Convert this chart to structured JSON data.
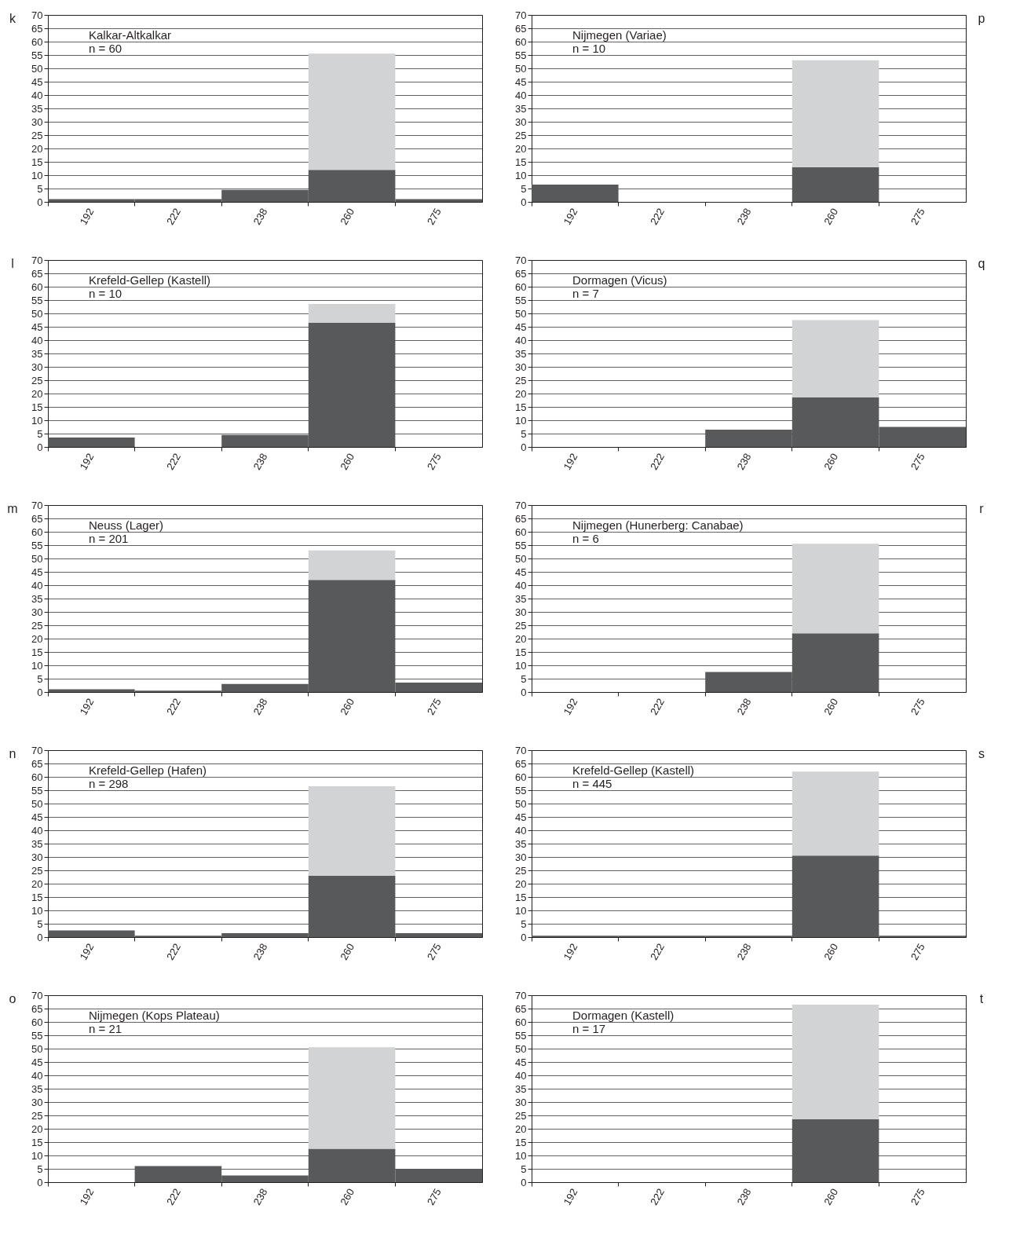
{
  "chart_data": [
    {
      "type": "bar",
      "title": "Kalkar-Altkalkar",
      "subtitle": "n = 60",
      "annotations": [
        "k"
      ],
      "categories": [
        "192",
        "222",
        "238",
        "260",
        "275"
      ],
      "stacked": true,
      "ylim": [
        0,
        70
      ],
      "yticks": [
        0,
        5,
        10,
        15,
        20,
        25,
        30,
        35,
        40,
        45,
        50,
        55,
        60,
        65,
        70
      ],
      "grid": "y",
      "series": [
        {
          "color": "#58595b",
          "values": [
            1,
            1,
            4.5,
            12,
            1
          ]
        },
        {
          "color": "#d1d3d4",
          "values": [
            0,
            0,
            0,
            43.5,
            0
          ]
        }
      ]
    },
    {
      "type": "bar",
      "title": "Nijmegen (Variae)",
      "subtitle": "n = 10",
      "annotations": [
        "p"
      ],
      "categories": [
        "192",
        "222",
        "238",
        "260",
        "275"
      ],
      "stacked": true,
      "ylim": [
        0,
        70
      ],
      "yticks": [
        0,
        5,
        10,
        15,
        20,
        25,
        30,
        35,
        40,
        45,
        50,
        55,
        60,
        65,
        70
      ],
      "grid": "y",
      "series": [
        {
          "color": "#58595b",
          "values": [
            6.5,
            0,
            0,
            13,
            0
          ]
        },
        {
          "color": "#d1d3d4",
          "values": [
            0,
            0,
            0,
            40,
            0
          ]
        }
      ]
    },
    {
      "type": "bar",
      "title": "Krefeld-Gellep (Kastell)",
      "subtitle": "n = 10",
      "annotations": [
        "l"
      ],
      "categories": [
        "192",
        "222",
        "238",
        "260",
        "275"
      ],
      "stacked": true,
      "ylim": [
        0,
        70
      ],
      "yticks": [
        0,
        5,
        10,
        15,
        20,
        25,
        30,
        35,
        40,
        45,
        50,
        55,
        60,
        65,
        70
      ],
      "grid": "y",
      "series": [
        {
          "color": "#58595b",
          "values": [
            3.5,
            0,
            4.5,
            46.5,
            0
          ]
        },
        {
          "color": "#d1d3d4",
          "values": [
            0,
            0,
            0,
            7,
            0
          ]
        }
      ]
    },
    {
      "type": "bar",
      "title": "Dormagen (Vicus)",
      "subtitle": "n = 7",
      "annotations": [
        "q"
      ],
      "categories": [
        "192",
        "222",
        "238",
        "260",
        "275"
      ],
      "stacked": true,
      "ylim": [
        0,
        70
      ],
      "yticks": [
        0,
        5,
        10,
        15,
        20,
        25,
        30,
        35,
        40,
        45,
        50,
        55,
        60,
        65,
        70
      ],
      "grid": "y",
      "series": [
        {
          "color": "#58595b",
          "values": [
            0,
            0,
            6.5,
            18.5,
            7.5
          ]
        },
        {
          "color": "#d1d3d4",
          "values": [
            0,
            0,
            0,
            29,
            0
          ]
        }
      ]
    },
    {
      "type": "bar",
      "title": "Neuss (Lager)",
      "subtitle": "n = 201",
      "annotations": [
        "m"
      ],
      "categories": [
        "192",
        "222",
        "238",
        "260",
        "275"
      ],
      "stacked": true,
      "ylim": [
        0,
        70
      ],
      "yticks": [
        0,
        5,
        10,
        15,
        20,
        25,
        30,
        35,
        40,
        45,
        50,
        55,
        60,
        65,
        70
      ],
      "grid": "y",
      "series": [
        {
          "color": "#58595b",
          "values": [
            1,
            0.5,
            3,
            42,
            3.5
          ]
        },
        {
          "color": "#d1d3d4",
          "values": [
            0,
            0,
            0,
            11,
            0
          ]
        }
      ]
    },
    {
      "type": "bar",
      "title": "Nijmegen (Hunerberg: Canabae)",
      "subtitle": "n = 6",
      "annotations": [
        "r"
      ],
      "categories": [
        "192",
        "222",
        "238",
        "260",
        "275"
      ],
      "stacked": true,
      "ylim": [
        0,
        70
      ],
      "yticks": [
        0,
        5,
        10,
        15,
        20,
        25,
        30,
        35,
        40,
        45,
        50,
        55,
        60,
        65,
        70
      ],
      "grid": "y",
      "series": [
        {
          "color": "#58595b",
          "values": [
            0,
            0,
            7.5,
            22,
            0
          ]
        },
        {
          "color": "#d1d3d4",
          "values": [
            0,
            0,
            0,
            33.5,
            0
          ]
        }
      ]
    },
    {
      "type": "bar",
      "title": "Krefeld-Gellep (Hafen)",
      "subtitle": "n = 298",
      "annotations": [
        "n"
      ],
      "categories": [
        "192",
        "222",
        "238",
        "260",
        "275"
      ],
      "stacked": true,
      "ylim": [
        0,
        70
      ],
      "yticks": [
        0,
        5,
        10,
        15,
        20,
        25,
        30,
        35,
        40,
        45,
        50,
        55,
        60,
        65,
        70
      ],
      "grid": "y",
      "series": [
        {
          "color": "#58595b",
          "values": [
            2.5,
            0.5,
            1.5,
            23,
            1.5
          ]
        },
        {
          "color": "#d1d3d4",
          "values": [
            0,
            0,
            0,
            33.5,
            0
          ]
        }
      ]
    },
    {
      "type": "bar",
      "title": "Krefeld-Gellep (Kastell)",
      "subtitle": "n = 445",
      "annotations": [
        "s"
      ],
      "categories": [
        "192",
        "222",
        "238",
        "260",
        "275"
      ],
      "stacked": true,
      "ylim": [
        0,
        70
      ],
      "yticks": [
        0,
        5,
        10,
        15,
        20,
        25,
        30,
        35,
        40,
        45,
        50,
        55,
        60,
        65,
        70
      ],
      "grid": "y",
      "series": [
        {
          "color": "#58595b",
          "values": [
            0.5,
            0.5,
            0.5,
            30.5,
            0.5
          ]
        },
        {
          "color": "#d1d3d4",
          "values": [
            0,
            0,
            0,
            31.5,
            0
          ]
        }
      ]
    },
    {
      "type": "bar",
      "title": "Nijmegen (Kops Plateau)",
      "subtitle": "n = 21",
      "annotations": [
        "o"
      ],
      "categories": [
        "192",
        "222",
        "238",
        "260",
        "275"
      ],
      "stacked": true,
      "ylim": [
        0,
        70
      ],
      "yticks": [
        0,
        5,
        10,
        15,
        20,
        25,
        30,
        35,
        40,
        45,
        50,
        55,
        60,
        65,
        70
      ],
      "grid": "y",
      "series": [
        {
          "color": "#58595b",
          "values": [
            0,
            6,
            2.5,
            12.5,
            5
          ]
        },
        {
          "color": "#d1d3d4",
          "values": [
            0,
            0,
            0,
            38,
            0
          ]
        }
      ]
    },
    {
      "type": "bar",
      "title": "Dormagen (Kastell)",
      "subtitle": "n = 17",
      "annotations": [
        "t"
      ],
      "categories": [
        "192",
        "222",
        "238",
        "260",
        "275"
      ],
      "stacked": true,
      "ylim": [
        0,
        70
      ],
      "yticks": [
        0,
        5,
        10,
        15,
        20,
        25,
        30,
        35,
        40,
        45,
        50,
        55,
        60,
        65,
        70
      ],
      "grid": "y",
      "series": [
        {
          "color": "#58595b",
          "values": [
            0,
            0,
            0,
            23.5,
            0
          ]
        },
        {
          "color": "#d1d3d4",
          "values": [
            0,
            0,
            0,
            43,
            0
          ]
        }
      ]
    }
  ]
}
